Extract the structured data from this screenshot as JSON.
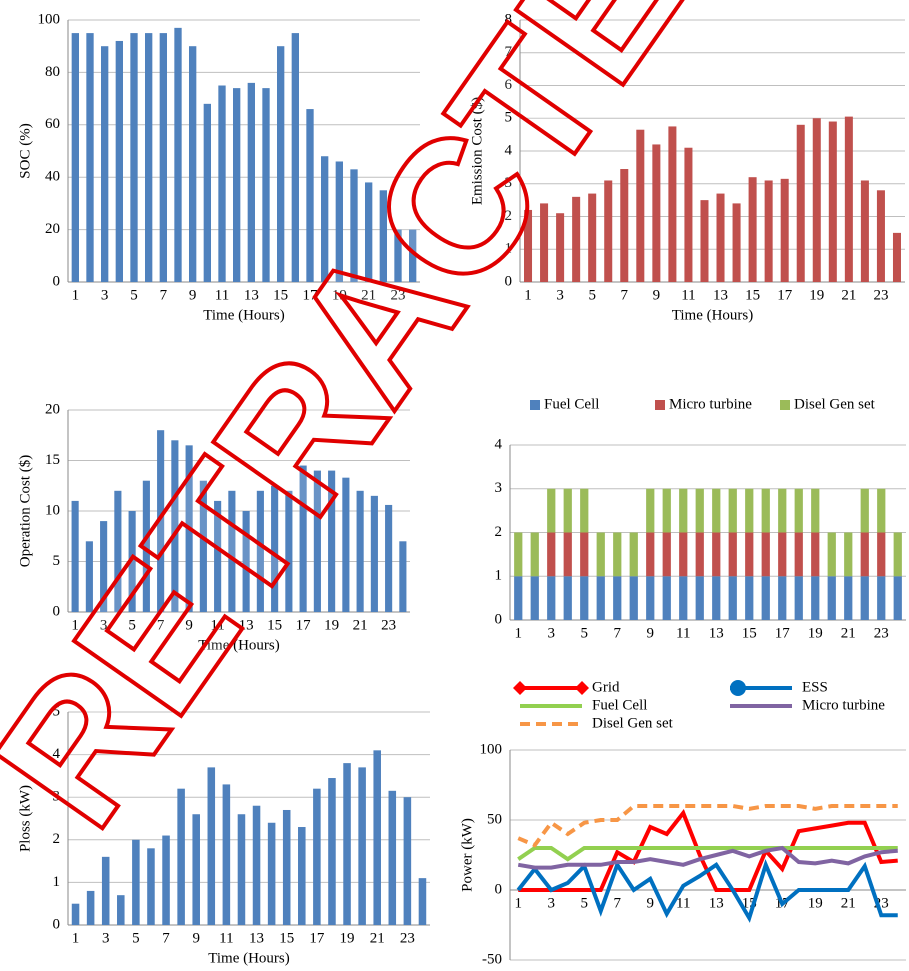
{
  "watermark": "RETRACTED",
  "chart_data": [
    {
      "type": "bar",
      "x_label": "Time (Hours)",
      "y_label": "SOC (%)",
      "categories": [
        "1",
        null,
        "3",
        null,
        "5",
        null,
        "7",
        null,
        "9",
        null,
        "11",
        null,
        "13",
        null,
        "15",
        null,
        "17",
        null,
        "19",
        null,
        "21",
        null,
        "23",
        null
      ],
      "series": [
        {
          "name": "SOC",
          "color": "#4f81bd",
          "values": [
            95,
            95,
            90,
            92,
            95,
            95,
            95,
            97,
            90,
            68,
            75,
            74,
            76,
            74,
            90,
            95,
            66,
            48,
            46,
            43,
            38,
            35,
            20,
            20
          ]
        }
      ],
      "ylim": [
        0,
        100
      ],
      "yticks": [
        0,
        20,
        40,
        60,
        80,
        100
      ],
      "grid": true
    },
    {
      "type": "bar",
      "x_label": "Time (Hours)",
      "y_label": "Emission Cost ($)",
      "categories": [
        "1",
        null,
        "3",
        null,
        "5",
        null,
        "7",
        null,
        "9",
        null,
        "11",
        null,
        "13",
        null,
        "15",
        null,
        "17",
        null,
        "19",
        null,
        "21",
        null,
        "23",
        null
      ],
      "series": [
        {
          "name": "Emission Cost",
          "color": "#c0504d",
          "values": [
            2.2,
            2.4,
            2.1,
            2.6,
            2.7,
            3.1,
            3.45,
            4.65,
            4.2,
            4.75,
            4.1,
            2.5,
            2.7,
            2.4,
            3.2,
            3.1,
            3.15,
            4.8,
            5.0,
            4.9,
            5.05,
            3.1,
            2.8,
            1.5
          ]
        }
      ],
      "ylim": [
        0,
        8
      ],
      "yticks": [
        0,
        1,
        2,
        3,
        4,
        5,
        6,
        7,
        8
      ],
      "grid": true
    },
    {
      "type": "bar",
      "x_label": "Time (Hours)",
      "y_label": "Operation Cost ($)",
      "categories": [
        "1",
        null,
        "3",
        null,
        "5",
        null,
        "7",
        null,
        "9",
        null,
        "11",
        null,
        "13",
        null,
        "15",
        null,
        "17",
        null,
        "19",
        null,
        "21",
        null,
        "23",
        null
      ],
      "series": [
        {
          "name": "Operation Cost",
          "color": "#4f81bd",
          "values": [
            11,
            7,
            9,
            12,
            10,
            13,
            18,
            17,
            16.5,
            13,
            11,
            12,
            10,
            12,
            12.5,
            12,
            14.5,
            14,
            14,
            13.3,
            12,
            11.5,
            10.6,
            7
          ]
        }
      ],
      "ylim": [
        0,
        20
      ],
      "yticks": [
        0,
        5,
        10,
        15,
        20
      ],
      "grid": true
    },
    {
      "type": "stacked-bar",
      "legend": "top",
      "categories": [
        "1",
        null,
        "3",
        null,
        "5",
        null,
        "7",
        null,
        "9",
        null,
        "11",
        null,
        "13",
        null,
        "15",
        null,
        "17",
        null,
        "19",
        null,
        "21",
        null,
        "23",
        null
      ],
      "series": [
        {
          "name": "Fuel Cell",
          "color": "#4f81bd",
          "values": [
            1,
            1,
            1,
            1,
            1,
            1,
            1,
            1,
            1,
            1,
            1,
            1,
            1,
            1,
            1,
            1,
            1,
            1,
            1,
            1,
            1,
            1,
            1,
            1
          ]
        },
        {
          "name": "Micro turbine",
          "color": "#c0504d",
          "values": [
            0,
            0,
            1,
            1,
            1,
            0,
            0,
            0,
            1,
            1,
            1,
            1,
            1,
            1,
            1,
            1,
            1,
            1,
            1,
            0,
            0,
            1,
            1,
            0
          ]
        },
        {
          "name": "Disel Gen set",
          "color": "#9bbb59",
          "values": [
            1,
            1,
            1,
            1,
            1,
            1,
            1,
            1,
            1,
            1,
            1,
            1,
            1,
            1,
            1,
            1,
            1,
            1,
            1,
            1,
            1,
            1,
            1,
            1
          ]
        }
      ],
      "ylim": [
        0,
        4
      ],
      "yticks": [
        0,
        1,
        2,
        3,
        4
      ],
      "grid": true
    },
    {
      "type": "bar",
      "x_label": "Time (Hours)",
      "y_label": "Ploss (kW)",
      "categories": [
        "1",
        null,
        "3",
        null,
        "5",
        null,
        "7",
        null,
        "9",
        null,
        "11",
        null,
        "13",
        null,
        "15",
        null,
        "17",
        null,
        "19",
        null,
        "21",
        null,
        "23",
        null
      ],
      "series": [
        {
          "name": "Ploss",
          "color": "#4f81bd",
          "values": [
            0.5,
            0.8,
            1.6,
            0.7,
            2.0,
            1.8,
            2.1,
            3.2,
            2.6,
            3.7,
            3.3,
            2.6,
            2.8,
            2.4,
            2.7,
            2.3,
            3.2,
            3.45,
            3.8,
            3.7,
            4.1,
            3.15,
            3.0,
            1.1
          ]
        }
      ],
      "ylim": [
        0,
        5
      ],
      "yticks": [
        0,
        1,
        2,
        3,
        4,
        5
      ],
      "grid": true
    },
    {
      "type": "line",
      "y_label": "Power (kW)",
      "legend": "top",
      "categories": [
        "1",
        null,
        "3",
        null,
        "5",
        null,
        "7",
        null,
        "9",
        null,
        "11",
        null,
        "13",
        null,
        "15",
        null,
        "17",
        null,
        "19",
        null,
        "21",
        null,
        "23",
        null
      ],
      "series": [
        {
          "name": "Grid",
          "color": "#ff0000",
          "marker": "diamond",
          "values": [
            0,
            0,
            0,
            0,
            0,
            0,
            27,
            20,
            45,
            40,
            55,
            25,
            0,
            0,
            0,
            28,
            15,
            42,
            44,
            46,
            48,
            48,
            20,
            21
          ]
        },
        {
          "name": "ESS",
          "color": "#0070c0",
          "marker": "circle",
          "values": [
            0,
            15,
            0,
            5,
            17,
            -15,
            18,
            0,
            8,
            -17,
            3,
            10,
            18,
            0,
            -20,
            18,
            -10,
            0,
            0,
            0,
            0,
            17,
            -18,
            -18
          ]
        },
        {
          "name": "Fuel Cell",
          "color": "#92d050",
          "values": [
            22,
            30,
            30,
            22,
            30,
            30,
            30,
            30,
            30,
            30,
            30,
            30,
            30,
            30,
            30,
            30,
            30,
            30,
            30,
            30,
            30,
            30,
            30,
            30
          ]
        },
        {
          "name": "Micro turbine",
          "color": "#8064a2",
          "values": [
            18,
            16,
            16,
            18,
            18,
            18,
            20,
            20,
            22,
            20,
            18,
            22,
            25,
            28,
            24,
            28,
            30,
            20,
            19,
            21,
            19,
            24,
            27,
            28
          ]
        },
        {
          "name": "Disel Gen set",
          "color": "#f79646",
          "style": "dashed",
          "values": [
            37,
            32,
            48,
            40,
            48,
            50,
            50,
            60,
            60,
            60,
            60,
            60,
            60,
            60,
            58,
            60,
            60,
            60,
            58,
            60,
            60,
            60,
            60,
            60
          ]
        }
      ],
      "ylim": [
        -50,
        100
      ],
      "yticks": [
        -50,
        0,
        50,
        100
      ],
      "grid": true
    }
  ]
}
